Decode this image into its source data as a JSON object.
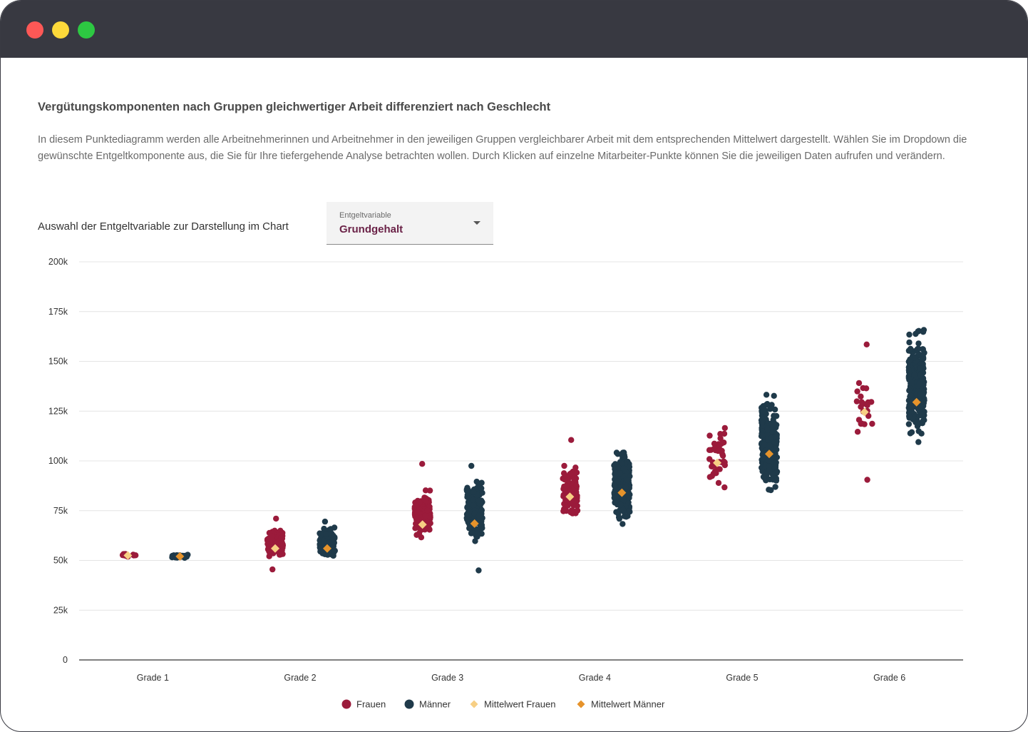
{
  "window": {
    "controls": [
      "close",
      "minimize",
      "maximize"
    ]
  },
  "header": {
    "title": "Vergütungskomponenten nach Gruppen gleichwertiger Arbeit differenziert nach Geschlecht",
    "description": "In diesem Punktediagramm werden alle Arbeitnehmerinnen und Arbeitnehmer in den jeweiligen Gruppen vergleichbarer Arbeit mit dem entsprechenden Mittelwert dargestellt. Wählen Sie im Dropdown die gewünschte Entgeltkomponente aus, die Sie für Ihre tiefergehende Analyse betrachten wollen. Durch Klicken auf einzelne Mitarbeiter-Punkte können Sie die jeweiligen Daten aufrufen und verändern."
  },
  "selector": {
    "label": "Auswahl der Entgeltvariable zur Darstellung im Chart",
    "caption": "Entgeltvariable",
    "value": "Grundgehalt"
  },
  "colors": {
    "frauen": "#9b1b3b",
    "maenner": "#1f3a4a",
    "mean_frauen": "#f7cf84",
    "mean_maenner": "#e6932b"
  },
  "chart_data": {
    "type": "scatter",
    "categories": [
      "Grade 1",
      "Grade 2",
      "Grade 3",
      "Grade 4",
      "Grade 5",
      "Grade 6"
    ],
    "ylim": [
      0,
      200000
    ],
    "yticks": [
      {
        "value": 0,
        "label": "0"
      },
      {
        "value": 25000,
        "label": "25k"
      },
      {
        "value": 50000,
        "label": "50k"
      },
      {
        "value": 75000,
        "label": "75k"
      },
      {
        "value": 100000,
        "label": "100k"
      },
      {
        "value": 125000,
        "label": "125k"
      },
      {
        "value": 150000,
        "label": "150k"
      },
      {
        "value": 175000,
        "label": "175k"
      },
      {
        "value": 200000,
        "label": "200k"
      }
    ],
    "grid": true,
    "legend_position": "bottom",
    "legend": [
      "Frauen",
      "Männer",
      "Mittelwert Frauen",
      "Mittelwert Männer"
    ],
    "groups": [
      {
        "category": "Grade 1",
        "frauen": {
          "count": 10,
          "min": 51000,
          "max": 54000,
          "mean": 52500,
          "outliers": []
        },
        "maenner": {
          "count": 20,
          "min": 50500,
          "max": 53500,
          "mean": 52000,
          "outliers": []
        }
      },
      {
        "category": "Grade 2",
        "frauen": {
          "count": 100,
          "min": 50000,
          "max": 68000,
          "mean": 56000,
          "outliers": [
            71000,
            45500
          ]
        },
        "maenner": {
          "count": 130,
          "min": 50000,
          "max": 68000,
          "mean": 56000,
          "outliers": [
            69500
          ]
        }
      },
      {
        "category": "Grade 3",
        "frauen": {
          "count": 140,
          "min": 59000,
          "max": 88000,
          "mean": 68000,
          "outliers": [
            98500
          ]
        },
        "maenner": {
          "count": 170,
          "min": 56000,
          "max": 95000,
          "mean": 68500,
          "outliers": [
            97500,
            45000
          ]
        }
      },
      {
        "category": "Grade 4",
        "frauen": {
          "count": 110,
          "min": 66000,
          "max": 100000,
          "mean": 82000,
          "outliers": [
            110500
          ]
        },
        "maenner": {
          "count": 280,
          "min": 66000,
          "max": 110000,
          "mean": 84000,
          "outliers": []
        }
      },
      {
        "category": "Grade 5",
        "frauen": {
          "count": 40,
          "min": 84000,
          "max": 120000,
          "mean": 99000,
          "outliers": []
        },
        "maenner": {
          "count": 260,
          "min": 81000,
          "max": 136000,
          "mean": 103500,
          "outliers": []
        }
      },
      {
        "category": "Grade 6",
        "frauen": {
          "count": 22,
          "min": 109000,
          "max": 146000,
          "mean": 124500,
          "outliers": [
            158500,
            90500
          ]
        },
        "maenner": {
          "count": 240,
          "min": 105000,
          "max": 172000,
          "mean": 129500,
          "outliers": []
        }
      }
    ]
  }
}
